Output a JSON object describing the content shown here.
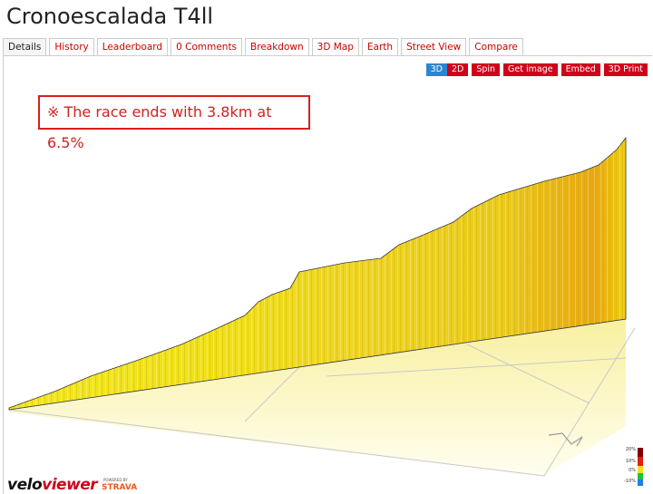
{
  "header": {
    "title": "Cronoescalada T4ll"
  },
  "tabs": [
    "Details",
    "History",
    "Leaderboard",
    "0 Comments",
    "Breakdown",
    "3D Map",
    "Earth",
    "Street View",
    "Compare"
  ],
  "buttons": [
    "3D",
    "2D",
    "Spin",
    "Get image",
    "Embed",
    "3D Print"
  ],
  "annotation": "※ The race ends with 3.8km at 6.5%",
  "legend": [
    "20%",
    "10%",
    "0%",
    "-10%"
  ],
  "logo": {
    "part1": "velo",
    "part2": "viewer",
    "powered": "POWERED BY",
    "brand": "STRAVA"
  }
}
